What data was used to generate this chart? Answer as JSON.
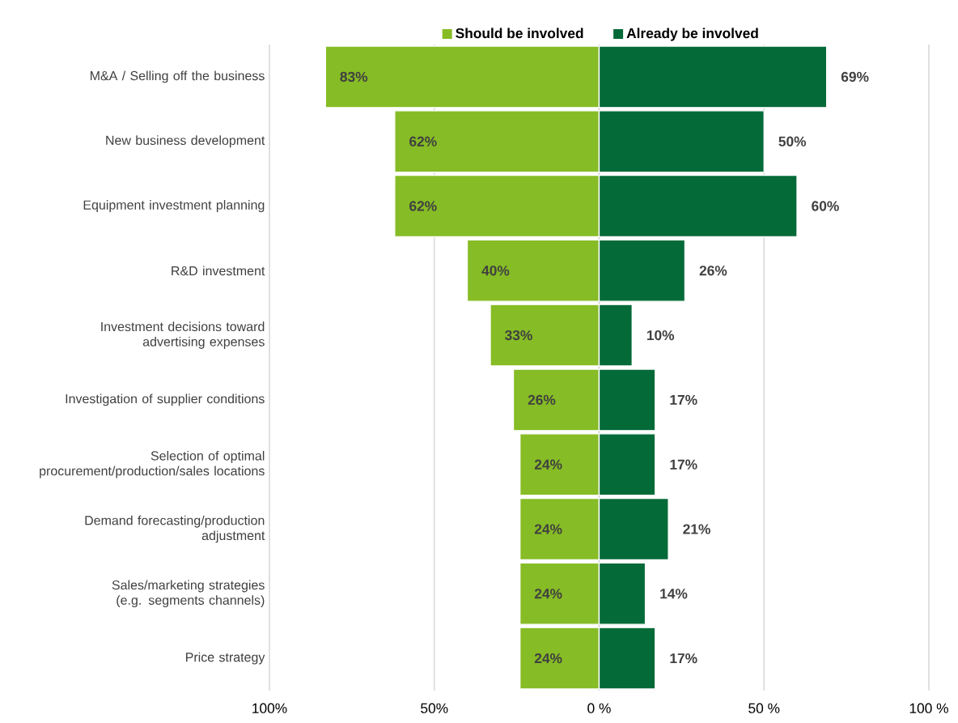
{
  "chart_data": [
    {
      "type": "bar",
      "orientation": "horizontal",
      "categories": [
        "M&A / Selling off the business",
        "New business development",
        "Equipment investment planning",
        "R&D investment",
        "Investment decisions toward advertising expenses",
        "Investigation of supplier conditions",
        "Selection of optimal procurement/production/sales locations",
        "Demand forecasting/production adjustment",
        "Sales/marketing strategies (e.g. segments channels)",
        "Price strategy"
      ],
      "series": [
        {
          "name": "Should be involved",
          "color": "#86bc25",
          "values": [
            83,
            62,
            62,
            40,
            33,
            26,
            24,
            24,
            24,
            24
          ],
          "value_labels": [
            "83%",
            "62%",
            "62%",
            "40%",
            "33%",
            "26%",
            "24%",
            "24%",
            "24%",
            "24%"
          ]
        }
      ],
      "xlim": [
        100,
        0
      ],
      "xticks": [
        {
          "value": 100,
          "label": "100%"
        },
        {
          "value": 50,
          "label": "50%"
        },
        {
          "value": 0,
          "label": "0 %"
        }
      ],
      "grid": "x",
      "legend": "top"
    },
    {
      "type": "bar",
      "orientation": "horizontal",
      "categories": [
        null,
        null,
        null,
        null,
        null,
        null,
        null,
        null,
        null,
        null
      ],
      "series": [
        {
          "name": "Already be involved",
          "color": "#046a38",
          "values": [
            69,
            50,
            60,
            26,
            10,
            17,
            17,
            21,
            14,
            17
          ],
          "value_labels": [
            "69%",
            "50%",
            "60%",
            "26%",
            "10%",
            "17%",
            "17%",
            "21%",
            "14%",
            "17%"
          ]
        }
      ],
      "xlim": [
        0,
        100
      ],
      "xticks": [
        {
          "value": 0,
          "label": null
        },
        {
          "value": 50,
          "label": "50 %"
        },
        {
          "value": 100,
          "label": "100 %"
        }
      ],
      "grid": "x",
      "legend": "top",
      "tick_labels": "x"
    }
  ]
}
